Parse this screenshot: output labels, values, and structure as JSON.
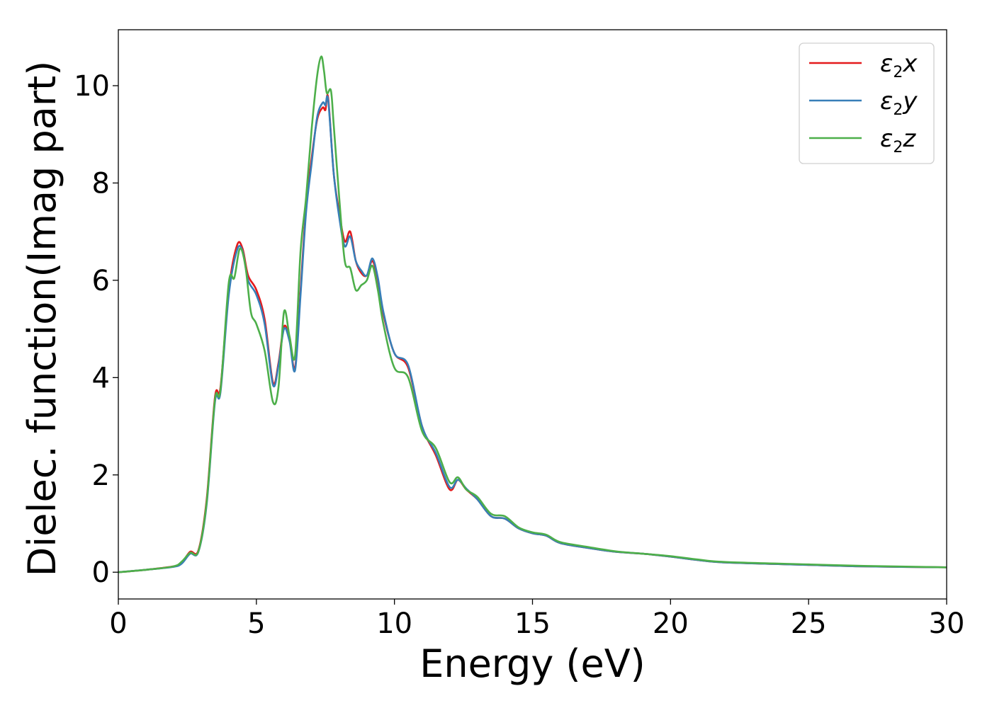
{
  "chart_data": {
    "type": "line",
    "xlabel": "Energy (eV)",
    "ylabel": "Dielec. function(Imag part)",
    "xlim": [
      0,
      30
    ],
    "ylim": [
      -0.55,
      11.15
    ],
    "x_ticks": [
      0,
      5,
      10,
      15,
      20,
      25,
      30
    ],
    "x_tick_labels": [
      "0",
      "5",
      "10",
      "15",
      "20",
      "25",
      "30"
    ],
    "y_ticks": [
      0,
      2,
      4,
      6,
      8,
      10
    ],
    "y_tick_labels": [
      "0",
      "2",
      "4",
      "6",
      "8",
      "10"
    ],
    "grid": false,
    "legend_position": "top-right",
    "series": [
      {
        "name": "ε2x",
        "label_base": "ε",
        "label_sub": "2",
        "label_axis": "x",
        "color": "#e41a1c",
        "x": [
          0,
          1,
          2,
          2.3,
          2.6,
          2.9,
          3.2,
          3.5,
          3.7,
          4.0,
          4.3,
          4.5,
          4.7,
          5.0,
          5.3,
          5.6,
          5.8,
          6.0,
          6.2,
          6.4,
          6.6,
          6.8,
          7.0,
          7.2,
          7.4,
          7.5,
          7.6,
          7.8,
          8.0,
          8.2,
          8.4,
          8.6,
          8.8,
          9.0,
          9.2,
          9.4,
          9.6,
          10.0,
          10.5,
          11.0,
          11.5,
          12.0,
          12.3,
          12.6,
          13.0,
          13.5,
          14.0,
          14.5,
          15.0,
          15.5,
          16.0,
          17,
          18,
          19,
          20,
          21,
          22,
          25,
          27,
          30
        ],
        "y": [
          0,
          0.05,
          0.12,
          0.2,
          0.42,
          0.45,
          1.5,
          3.6,
          3.8,
          5.8,
          6.72,
          6.65,
          6.1,
          5.8,
          5.2,
          3.9,
          4.3,
          5.05,
          4.8,
          4.2,
          5.8,
          7.5,
          8.5,
          9.3,
          9.55,
          9.5,
          9.75,
          8.2,
          7.4,
          6.8,
          7.0,
          6.4,
          6.15,
          6.1,
          6.4,
          6.0,
          5.3,
          4.5,
          4.2,
          3.0,
          2.4,
          1.7,
          1.9,
          1.7,
          1.5,
          1.15,
          1.1,
          0.9,
          0.8,
          0.75,
          0.6,
          0.5,
          0.42,
          0.38,
          0.32,
          0.25,
          0.2,
          0.15,
          0.12,
          0.1
        ]
      },
      {
        "name": "ε2y",
        "label_base": "ε",
        "label_sub": "2",
        "label_axis": "y",
        "color": "#377eb8",
        "x": [
          0,
          1,
          2,
          2.3,
          2.6,
          2.9,
          3.2,
          3.5,
          3.7,
          4.0,
          4.3,
          4.5,
          4.7,
          5.0,
          5.3,
          5.6,
          5.8,
          6.0,
          6.2,
          6.4,
          6.6,
          6.8,
          7.0,
          7.2,
          7.4,
          7.5,
          7.6,
          7.8,
          8.0,
          8.2,
          8.4,
          8.6,
          8.8,
          9.0,
          9.2,
          9.4,
          9.6,
          10.0,
          10.5,
          11.0,
          11.5,
          12.0,
          12.3,
          12.6,
          13.0,
          13.5,
          14.0,
          14.5,
          15.0,
          15.5,
          16.0,
          17,
          18,
          19,
          20,
          21,
          22,
          25,
          27,
          30
        ],
        "y": [
          0,
          0.05,
          0.11,
          0.18,
          0.38,
          0.42,
          1.4,
          3.5,
          3.7,
          5.7,
          6.62,
          6.6,
          6.0,
          5.7,
          5.1,
          3.85,
          4.25,
          5.0,
          4.75,
          4.15,
          5.7,
          7.4,
          8.4,
          9.35,
          9.65,
          9.6,
          9.7,
          8.2,
          7.3,
          6.7,
          6.9,
          6.4,
          6.2,
          6.1,
          6.45,
          6.05,
          5.35,
          4.5,
          4.25,
          3.0,
          2.45,
          1.75,
          1.9,
          1.72,
          1.5,
          1.15,
          1.1,
          0.9,
          0.8,
          0.75,
          0.6,
          0.5,
          0.42,
          0.38,
          0.32,
          0.25,
          0.2,
          0.15,
          0.12,
          0.1
        ]
      },
      {
        "name": "ε2z",
        "label_base": "ε",
        "label_sub": "2",
        "label_axis": "z",
        "color": "#4daf4a",
        "x": [
          0,
          1,
          2,
          2.3,
          2.6,
          2.9,
          3.2,
          3.5,
          3.7,
          4.0,
          4.2,
          4.4,
          4.6,
          4.8,
          5.0,
          5.3,
          5.6,
          5.8,
          6.0,
          6.2,
          6.4,
          6.6,
          6.8,
          7.0,
          7.2,
          7.35,
          7.45,
          7.55,
          7.7,
          7.8,
          8.0,
          8.2,
          8.4,
          8.6,
          8.8,
          9.0,
          9.2,
          9.4,
          9.6,
          10.0,
          10.5,
          11.0,
          11.5,
          12.0,
          12.3,
          12.6,
          13.0,
          13.5,
          14.0,
          14.5,
          15.0,
          15.5,
          16.0,
          17,
          18,
          19,
          20,
          21,
          22,
          25,
          27,
          30
        ],
        "y": [
          0,
          0.05,
          0.12,
          0.22,
          0.4,
          0.43,
          1.45,
          3.55,
          3.75,
          5.95,
          6.05,
          6.65,
          6.3,
          5.35,
          5.1,
          4.55,
          3.5,
          3.8,
          5.35,
          4.85,
          4.45,
          6.6,
          7.7,
          9.1,
          10.2,
          10.6,
          10.3,
          9.85,
          9.9,
          9.2,
          7.7,
          6.4,
          6.25,
          5.8,
          5.9,
          6.0,
          6.3,
          5.8,
          5.1,
          4.2,
          4.0,
          2.9,
          2.55,
          1.85,
          1.95,
          1.7,
          1.55,
          1.2,
          1.15,
          0.92,
          0.82,
          0.77,
          0.62,
          0.52,
          0.43,
          0.38,
          0.33,
          0.26,
          0.21,
          0.16,
          0.13,
          0.1
        ]
      }
    ]
  }
}
